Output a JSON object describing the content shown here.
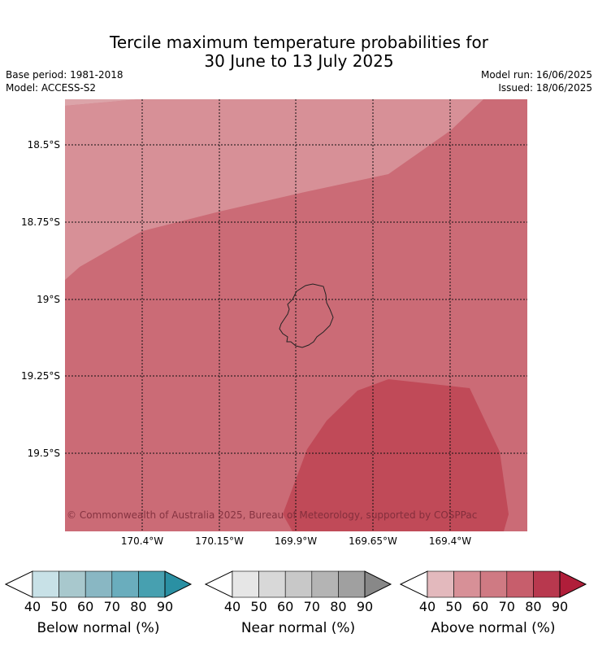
{
  "title_line1": "Tercile maximum temperature probabilities for",
  "title_line2": "30 June to 13 July 2025",
  "meta": {
    "base_period": "Base period: 1981-2018",
    "model": "Model: ACCESS-S2",
    "model_run": "Model run: 16/06/2025",
    "issued": "Issued: 18/06/2025"
  },
  "map": {
    "lat_labels": [
      "18.5°S",
      "18.75°S",
      "19°S",
      "19.25°S",
      "19.5°S"
    ],
    "lon_labels": [
      "170.4°W",
      "170.15°W",
      "169.9°W",
      "169.65°W",
      "169.4°W"
    ],
    "copyright": "© Commonwealth of Australia 2025, Bureau of Meteorology, supported by COSPPac",
    "colors": {
      "above_50_60": "#d79097",
      "above_60_70": "#cb6b76",
      "above_70_80": "#c04a58"
    }
  },
  "colorbars": [
    {
      "label": "Below normal (%)",
      "ticks": [
        "40",
        "50",
        "60",
        "70",
        "80",
        "90"
      ],
      "colors": [
        "#c8e1e7",
        "#a8c8cd",
        "#89b7c3",
        "#6aadbd",
        "#47a0b0",
        "#2a90a3"
      ]
    },
    {
      "label": "Near normal (%)",
      "ticks": [
        "40",
        "50",
        "60",
        "70",
        "80",
        "90"
      ],
      "colors": [
        "#e6e6e6",
        "#d8d8d8",
        "#c8c8c8",
        "#b4b4b4",
        "#a0a0a0",
        "#888888"
      ]
    },
    {
      "label": "Above normal (%)",
      "ticks": [
        "40",
        "50",
        "60",
        "70",
        "80",
        "90"
      ],
      "colors": [
        "#e3b9bd",
        "#d79097",
        "#cf7a83",
        "#c75e6c",
        "#b8384e",
        "#b01e3a"
      ]
    }
  ]
}
